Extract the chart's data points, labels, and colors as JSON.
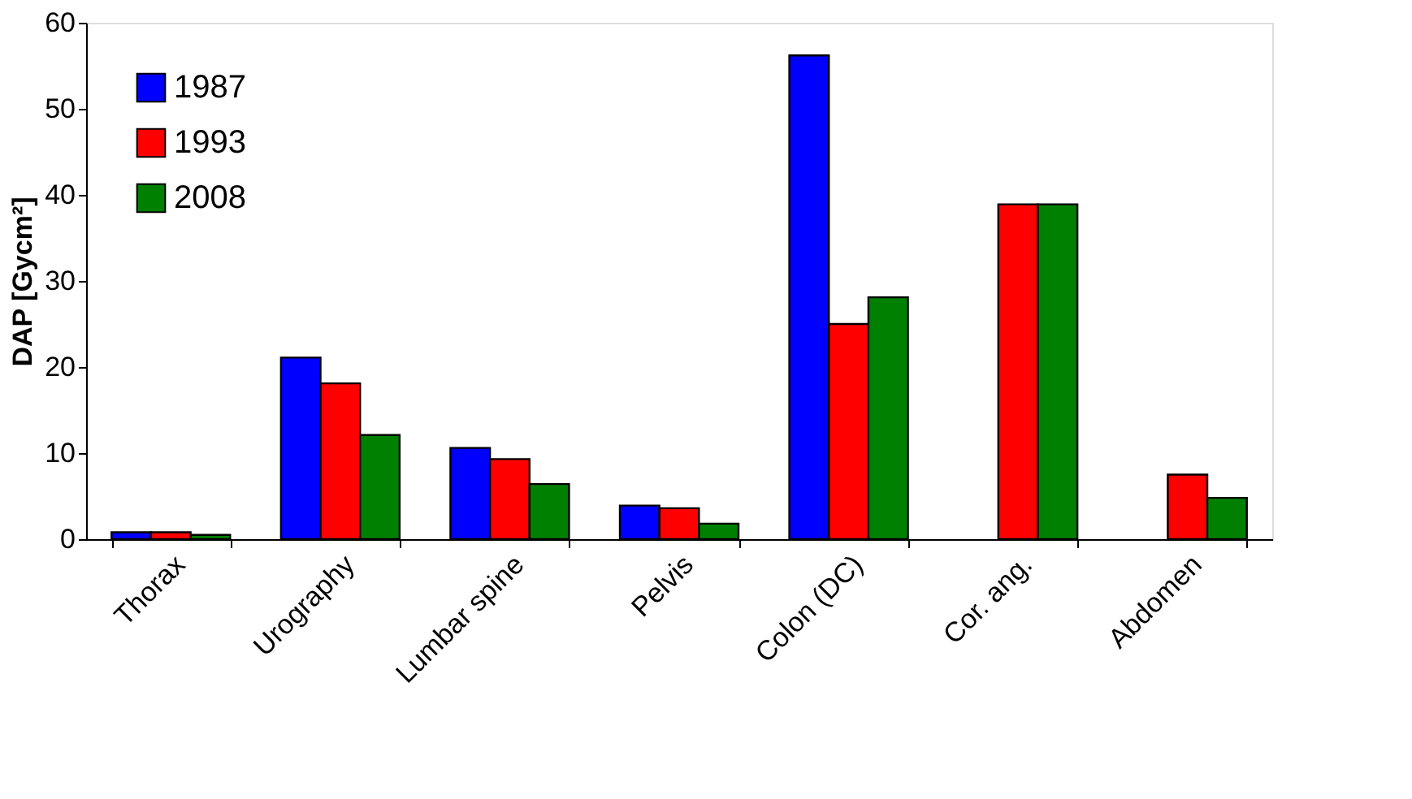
{
  "chart_data": {
    "type": "bar",
    "ylabel": "DAP [Gycm²]",
    "categories": [
      "Thorax",
      "Urography",
      "Lumbar spine",
      "Pelvis",
      "Colon (DC)",
      "Cor. ang.",
      "Abdomen"
    ],
    "series": [
      {
        "name": "1987",
        "color": "#0000ff",
        "values": [
          0.8,
          21.1,
          10.6,
          3.9,
          56.2,
          null,
          null
        ]
      },
      {
        "name": "1993",
        "color": "#ff0000",
        "values": [
          0.8,
          18.1,
          9.3,
          3.6,
          25.0,
          38.9,
          7.5
        ]
      },
      {
        "name": "2008",
        "color": "#008000",
        "values": [
          0.5,
          12.1,
          6.4,
          1.8,
          28.1,
          38.9,
          4.8
        ]
      }
    ],
    "ylim": [
      0,
      60
    ],
    "yticks": [
      0,
      10,
      20,
      30,
      40,
      50,
      60
    ],
    "grid": false,
    "legend": "top left"
  }
}
